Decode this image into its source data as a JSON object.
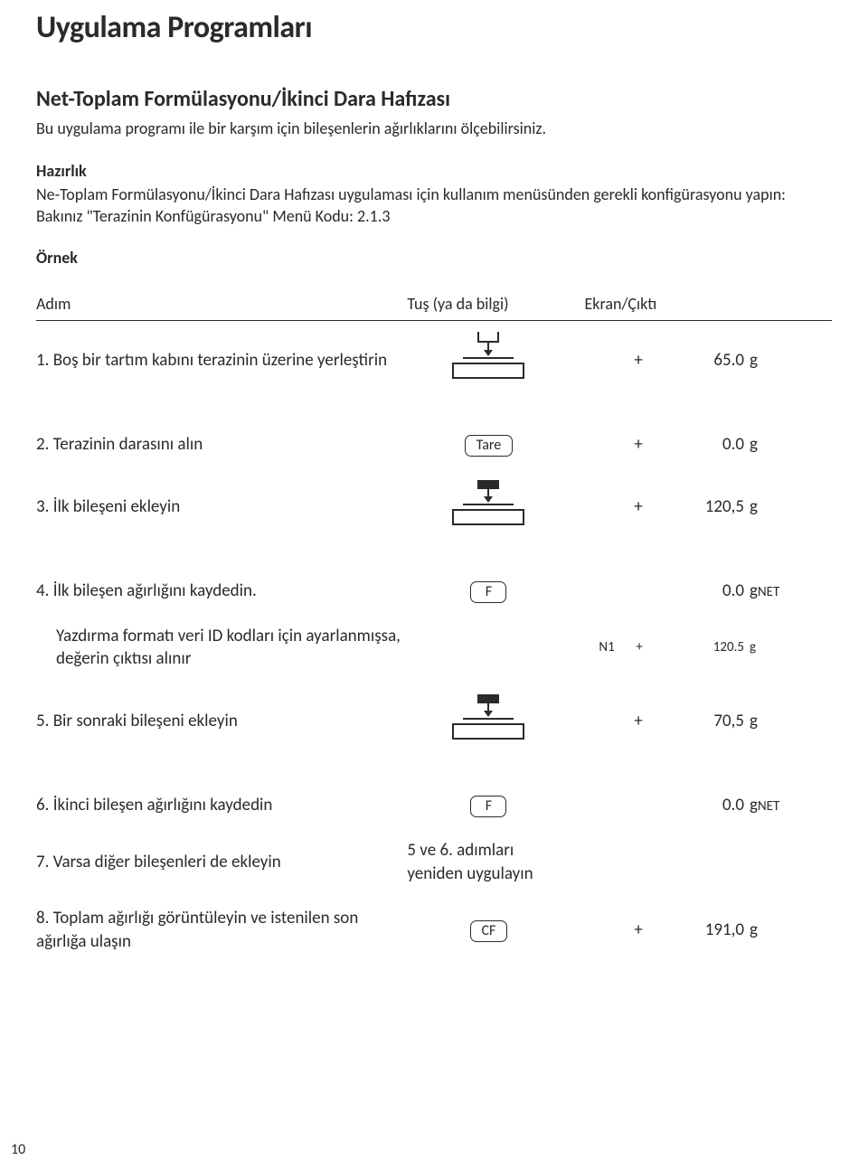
{
  "page_number": "10",
  "title": "Uygulama Programları",
  "section_title": "Net-Toplam Formülasyonu/İkinci Dara Hafızası",
  "intro": "Bu uygulama programı ile bir karşım için bileşenlerin ağırlıklarını ölçebilirsiniz.",
  "hazirlik_heading": "Hazırlık",
  "hazirlik_body": "Ne-Toplam Formülasyonu/İkinci Dara Hafızası uygulaması için kullanım menüsünden gerekli konfigürasyonu yapın: Bakınız \"Terazinin Konfügürasyonu\" Menü Kodu: 2.1.3",
  "ornek_heading": "Örnek",
  "columns": {
    "step": "Adım",
    "key": "Tuş (ya da bilgi)",
    "out": "Ekran/Çıktı"
  },
  "rows": [
    {
      "step": "1. Boş bir tartım kabını terazinin üzerine yerleştirin",
      "key_kind": "scale",
      "sign": "+",
      "val": "65.0",
      "unit": "g"
    },
    {
      "spacer": true
    },
    {
      "step": "2. Terazinin darasını alın",
      "key_kind": "button",
      "key_label": "Tare",
      "sign": "+",
      "val": "0.0",
      "unit": "g"
    },
    {
      "step": "3. İlk bileşeni ekleyin",
      "key_kind": "scale_loaded",
      "sign": "+",
      "val": "120,5",
      "unit": "g"
    },
    {
      "spacer": true
    },
    {
      "step": "4. İlk bileşen ağırlığını kaydedin.",
      "key_kind": "button",
      "key_label": "F",
      "sign": "",
      "val": "0.0",
      "unit": "g",
      "unit_sub": "NET"
    },
    {
      "step": "    Yazdırma formatı veri ID kodları için ayarlanmışsa, değerin çıktısı alınır",
      "key_kind": "",
      "sign": "N1       +",
      "val": "120.5",
      "unit": "g",
      "small": true
    },
    {
      "step": "5. Bir sonraki bileşeni ekleyin",
      "key_kind": "scale_loaded",
      "sign": "+",
      "val": "70,5",
      "unit": "g"
    },
    {
      "spacer": true
    },
    {
      "step": "6. İkinci bileşen ağırlığını kaydedin",
      "key_kind": "button",
      "key_label": "F",
      "sign": "",
      "val": "0.0",
      "unit": "g",
      "unit_sub": "NET"
    },
    {
      "step": "7. Varsa diğer bileşenleri de ekleyin",
      "key_kind": "text",
      "key_label": "5 ve 6. adımları yeniden uygulayın",
      "sign": "",
      "val": "",
      "unit": ""
    },
    {
      "step": "8. Toplam ağırlığı görüntüleyin ve istenilen son ağırlığa ulaşın",
      "key_kind": "button",
      "key_label": "CF",
      "sign": "+",
      "val": "191,0",
      "unit": "g"
    }
  ]
}
